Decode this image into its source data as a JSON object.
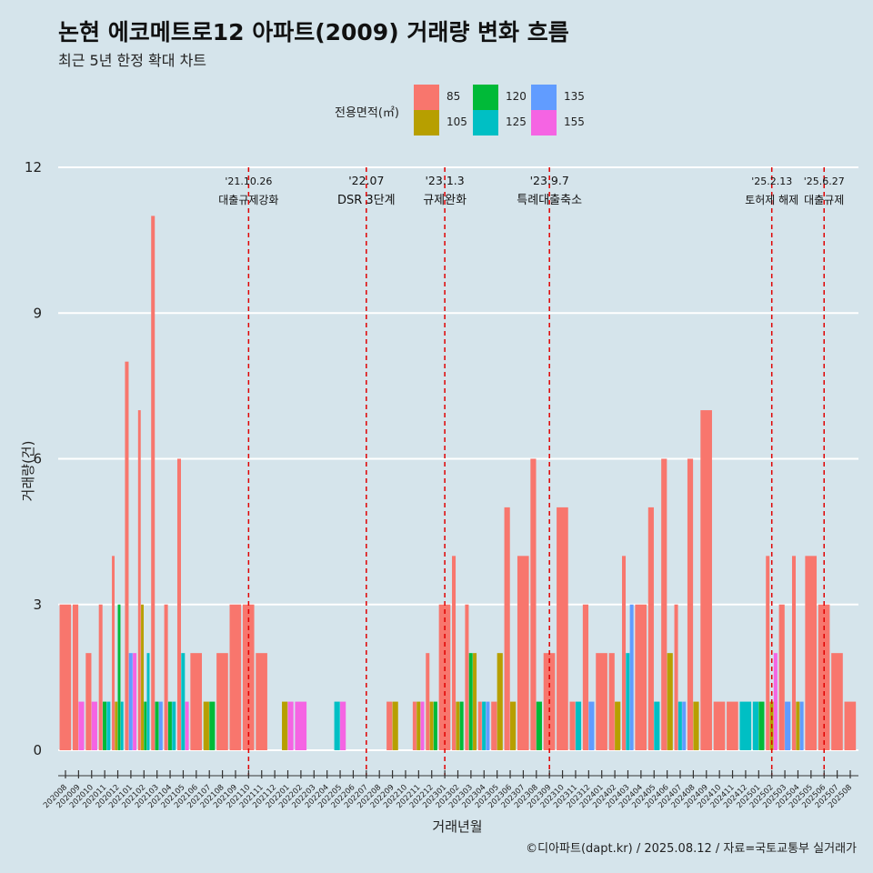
{
  "chart_data": {
    "type": "bar",
    "title": "논현 에코메트로12 아파트(2009) 거래량 변화 흐름",
    "subtitle": "최근 5년 한정 확대 차트",
    "xlabel": "거래년월",
    "ylabel": "거래량(건)",
    "ylim": [
      0,
      12
    ],
    "yticks": [
      0,
      3,
      6,
      9,
      12
    ],
    "grid": true,
    "legend_title": "전용면적(㎡)",
    "legend_position": "top",
    "caption": "©디아파트(dapt.kr) / 2025.08.12 / 자료=국토교통부 실거래가",
    "colors": {
      "85": "#f8766d",
      "105": "#b79f00",
      "120": "#00ba38",
      "125": "#00bfc4",
      "135": "#619cff",
      "155": "#f564e3"
    },
    "legend": [
      {
        "name": "85",
        "color": "#f8766d"
      },
      {
        "name": "105",
        "color": "#b79f00"
      },
      {
        "name": "120",
        "color": "#00ba38"
      },
      {
        "name": "125",
        "color": "#00bfc4"
      },
      {
        "name": "135",
        "color": "#619cff"
      },
      {
        "name": "155",
        "color": "#f564e3"
      }
    ],
    "categories": [
      "202008",
      "202009",
      "202010",
      "202011",
      "202012",
      "202101",
      "202102",
      "202103",
      "202104",
      "202105",
      "202106",
      "202107",
      "202108",
      "202109",
      "202110",
      "202111",
      "202112",
      "202201",
      "202202",
      "202203",
      "202204",
      "202205",
      "202206",
      "202207",
      "202208",
      "202209",
      "202210",
      "202211",
      "202212",
      "202301",
      "202302",
      "202303",
      "202304",
      "202305",
      "202306",
      "202307",
      "202308",
      "202309",
      "202310",
      "202311",
      "202312",
      "202401",
      "202402",
      "202403",
      "202404",
      "202405",
      "202406",
      "202407",
      "202408",
      "202409",
      "202410",
      "202411",
      "202412",
      "202501",
      "202502",
      "202503",
      "202504",
      "202505",
      "202506",
      "202507",
      "202508"
    ],
    "bars": [
      {
        "month": "202008",
        "segments": [
          {
            "area": "85",
            "value": 3
          }
        ]
      },
      {
        "month": "202009",
        "segments": [
          {
            "area": "85",
            "value": 3
          },
          {
            "area": "155",
            "value": 1
          }
        ]
      },
      {
        "month": "202010",
        "segments": [
          {
            "area": "85",
            "value": 2
          },
          {
            "area": "155",
            "value": 1
          }
        ]
      },
      {
        "month": "202011",
        "segments": [
          {
            "area": "85",
            "value": 3
          },
          {
            "area": "120",
            "value": 1
          },
          {
            "area": "125",
            "value": 1
          }
        ]
      },
      {
        "month": "202012",
        "segments": [
          {
            "area": "85",
            "value": 4
          },
          {
            "area": "105",
            "value": 1
          },
          {
            "area": "120",
            "value": 3
          },
          {
            "area": "125",
            "value": 1
          }
        ]
      },
      {
        "month": "202101",
        "segments": [
          {
            "area": "85",
            "value": 8
          },
          {
            "area": "135",
            "value": 2
          },
          {
            "area": "155",
            "value": 2
          }
        ]
      },
      {
        "month": "202102",
        "segments": [
          {
            "area": "85",
            "value": 7
          },
          {
            "area": "105",
            "value": 3
          },
          {
            "area": "120",
            "value": 1
          },
          {
            "area": "125",
            "value": 2
          }
        ]
      },
      {
        "month": "202103",
        "segments": [
          {
            "area": "85",
            "value": 11
          },
          {
            "area": "120",
            "value": 1
          },
          {
            "area": "135",
            "value": 1
          }
        ]
      },
      {
        "month": "202104",
        "segments": [
          {
            "area": "85",
            "value": 3
          },
          {
            "area": "120",
            "value": 1
          },
          {
            "area": "125",
            "value": 1
          }
        ]
      },
      {
        "month": "202105",
        "segments": [
          {
            "area": "85",
            "value": 6
          },
          {
            "area": "125",
            "value": 2
          },
          {
            "area": "155",
            "value": 1
          }
        ]
      },
      {
        "month": "202106",
        "segments": [
          {
            "area": "85",
            "value": 2
          }
        ]
      },
      {
        "month": "202107",
        "segments": [
          {
            "area": "105",
            "value": 1
          },
          {
            "area": "120",
            "value": 1
          }
        ]
      },
      {
        "month": "202108",
        "segments": [
          {
            "area": "85",
            "value": 2
          }
        ]
      },
      {
        "month": "202109",
        "segments": [
          {
            "area": "85",
            "value": 3
          }
        ]
      },
      {
        "month": "202110",
        "segments": [
          {
            "area": "85",
            "value": 3
          }
        ]
      },
      {
        "month": "202111",
        "segments": [
          {
            "area": "85",
            "value": 2
          }
        ]
      },
      {
        "month": "202112",
        "segments": []
      },
      {
        "month": "202201",
        "segments": [
          {
            "area": "105",
            "value": 1
          },
          {
            "area": "155",
            "value": 1
          }
        ]
      },
      {
        "month": "202202",
        "segments": [
          {
            "area": "155",
            "value": 1
          }
        ]
      },
      {
        "month": "202203",
        "segments": []
      },
      {
        "month": "202204",
        "segments": []
      },
      {
        "month": "202205",
        "segments": [
          {
            "area": "125",
            "value": 1
          },
          {
            "area": "155",
            "value": 1
          }
        ]
      },
      {
        "month": "202206",
        "segments": []
      },
      {
        "month": "202207",
        "segments": []
      },
      {
        "month": "202208",
        "segments": []
      },
      {
        "month": "202209",
        "segments": [
          {
            "area": "85",
            "value": 1
          },
          {
            "area": "105",
            "value": 1
          }
        ]
      },
      {
        "month": "202210",
        "segments": []
      },
      {
        "month": "202211",
        "segments": [
          {
            "area": "85",
            "value": 1
          },
          {
            "area": "105",
            "value": 1
          },
          {
            "area": "155",
            "value": 1
          }
        ]
      },
      {
        "month": "202212",
        "segments": [
          {
            "area": "85",
            "value": 2
          },
          {
            "area": "105",
            "value": 1
          },
          {
            "area": "120",
            "value": 1
          }
        ]
      },
      {
        "month": "202301",
        "segments": [
          {
            "area": "85",
            "value": 3
          }
        ]
      },
      {
        "month": "202302",
        "segments": [
          {
            "area": "85",
            "value": 4
          },
          {
            "area": "105",
            "value": 1
          },
          {
            "area": "120",
            "value": 1
          }
        ]
      },
      {
        "month": "202303",
        "segments": [
          {
            "area": "85",
            "value": 3
          },
          {
            "area": "120",
            "value": 2
          },
          {
            "area": "105",
            "value": 2
          }
        ]
      },
      {
        "month": "202304",
        "segments": [
          {
            "area": "85",
            "value": 1
          },
          {
            "area": "125",
            "value": 1
          },
          {
            "area": "135",
            "value": 1
          }
        ]
      },
      {
        "month": "202305",
        "segments": [
          {
            "area": "85",
            "value": 1
          },
          {
            "area": "105",
            "value": 2
          }
        ]
      },
      {
        "month": "202306",
        "segments": [
          {
            "area": "85",
            "value": 5
          },
          {
            "area": "105",
            "value": 1
          }
        ]
      },
      {
        "month": "202307",
        "segments": [
          {
            "area": "85",
            "value": 4
          }
        ]
      },
      {
        "month": "202308",
        "segments": [
          {
            "area": "85",
            "value": 6
          },
          {
            "area": "120",
            "value": 1
          }
        ]
      },
      {
        "month": "202309",
        "segments": [
          {
            "area": "85",
            "value": 2
          }
        ]
      },
      {
        "month": "202310",
        "segments": [
          {
            "area": "85",
            "value": 5
          }
        ]
      },
      {
        "month": "202311",
        "segments": [
          {
            "area": "85",
            "value": 1
          },
          {
            "area": "125",
            "value": 1
          }
        ]
      },
      {
        "month": "202312",
        "segments": [
          {
            "area": "85",
            "value": 3
          },
          {
            "area": "135",
            "value": 1
          }
        ]
      },
      {
        "month": "202401",
        "segments": [
          {
            "area": "85",
            "value": 2
          }
        ]
      },
      {
        "month": "202402",
        "segments": [
          {
            "area": "85",
            "value": 2
          },
          {
            "area": "105",
            "value": 1
          }
        ]
      },
      {
        "month": "202403",
        "segments": [
          {
            "area": "85",
            "value": 4
          },
          {
            "area": "125",
            "value": 2
          },
          {
            "area": "135",
            "value": 3
          }
        ]
      },
      {
        "month": "202404",
        "segments": [
          {
            "area": "85",
            "value": 3
          }
        ]
      },
      {
        "month": "202405",
        "segments": [
          {
            "area": "85",
            "value": 5
          },
          {
            "area": "125",
            "value": 1
          }
        ]
      },
      {
        "month": "202406",
        "segments": [
          {
            "area": "85",
            "value": 6
          },
          {
            "area": "105",
            "value": 2
          }
        ]
      },
      {
        "month": "202407",
        "segments": [
          {
            "area": "85",
            "value": 3
          },
          {
            "area": "125",
            "value": 1
          },
          {
            "area": "135",
            "value": 1
          }
        ]
      },
      {
        "month": "202408",
        "segments": [
          {
            "area": "85",
            "value": 6
          },
          {
            "area": "105",
            "value": 1
          }
        ]
      },
      {
        "month": "202409",
        "segments": [
          {
            "area": "85",
            "value": 7
          }
        ]
      },
      {
        "month": "202410",
        "segments": [
          {
            "area": "85",
            "value": 1
          }
        ]
      },
      {
        "month": "202411",
        "segments": [
          {
            "area": "85",
            "value": 1
          }
        ]
      },
      {
        "month": "202412",
        "segments": [
          {
            "area": "125",
            "value": 1
          }
        ]
      },
      {
        "month": "202501",
        "segments": [
          {
            "area": "125",
            "value": 1
          },
          {
            "area": "120",
            "value": 1
          }
        ]
      },
      {
        "month": "202502",
        "segments": [
          {
            "area": "85",
            "value": 4
          },
          {
            "area": "105",
            "value": 1
          },
          {
            "area": "155",
            "value": 2
          }
        ]
      },
      {
        "month": "202503",
        "segments": [
          {
            "area": "85",
            "value": 3
          },
          {
            "area": "135",
            "value": 1
          }
        ]
      },
      {
        "month": "202504",
        "segments": [
          {
            "area": "85",
            "value": 4
          },
          {
            "area": "105",
            "value": 1
          },
          {
            "area": "135",
            "value": 1
          }
        ]
      },
      {
        "month": "202505",
        "segments": [
          {
            "area": "85",
            "value": 4
          }
        ]
      },
      {
        "month": "202506",
        "segments": [
          {
            "area": "85",
            "value": 3
          }
        ]
      },
      {
        "month": "202507",
        "segments": [
          {
            "area": "85",
            "value": 2
          }
        ]
      },
      {
        "month": "202508",
        "segments": [
          {
            "area": "85",
            "value": 1
          }
        ]
      }
    ],
    "annotations": [
      {
        "at": "202110",
        "offset": 0.0,
        "date": "'21.10.26",
        "text": "대출규제강화"
      },
      {
        "at": "202207",
        "offset": 0.0,
        "date": "'22.07",
        "text": "DSR 3단계"
      },
      {
        "at": "202301",
        "offset": 0.0,
        "date": "'23.1.3",
        "text": "규제완화"
      },
      {
        "at": "202309",
        "offset": 0.0,
        "date": "'23.9.7",
        "text": "특례대출축소"
      },
      {
        "at": "202502",
        "offset": 0.0,
        "date": "'25.2.13",
        "text": "토허제 해제"
      },
      {
        "at": "202506",
        "offset": 0.0,
        "date": "'25.6.27",
        "text": "대출규제"
      }
    ]
  }
}
